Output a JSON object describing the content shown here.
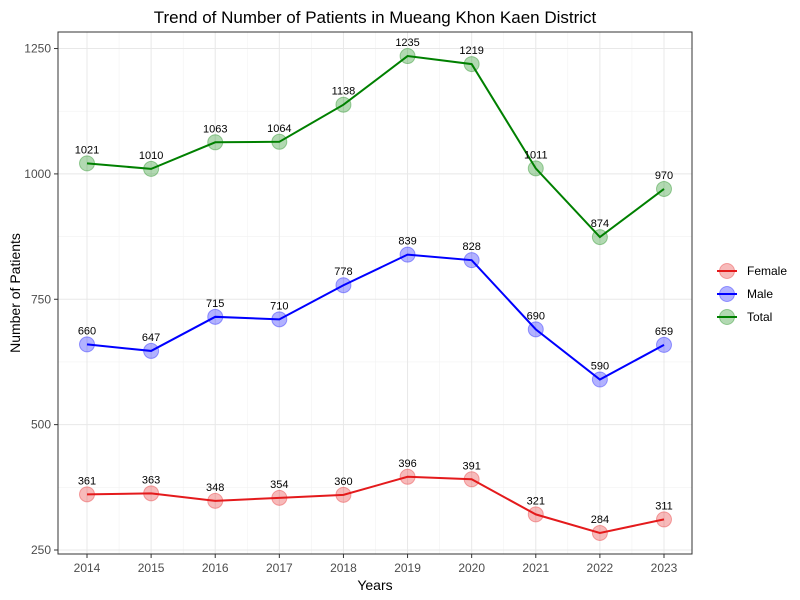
{
  "chart_data": {
    "type": "line",
    "title": "Trend of Number of Patients in Mueang Khon Kaen District",
    "xlabel": "Years",
    "ylabel": "Number of Patients",
    "categories": [
      "2014",
      "2015",
      "2016",
      "2017",
      "2018",
      "2019",
      "2020",
      "2021",
      "2022",
      "2023"
    ],
    "y_ticks": [
      250,
      500,
      750,
      1000,
      1250
    ],
    "ylim": [
      250,
      1275
    ],
    "grid": true,
    "legend_position": "right",
    "series": [
      {
        "name": "Female",
        "color": "#e41a1c",
        "values": [
          361,
          363,
          348,
          354,
          360,
          396,
          391,
          321,
          284,
          311
        ]
      },
      {
        "name": "Male",
        "color": "#0000ff",
        "values": [
          660,
          647,
          715,
          710,
          778,
          839,
          828,
          690,
          590,
          659
        ]
      },
      {
        "name": "Total",
        "color": "#008000",
        "values": [
          1021,
          1010,
          1063,
          1064,
          1138,
          1235,
          1219,
          1011,
          874,
          970
        ]
      }
    ]
  }
}
